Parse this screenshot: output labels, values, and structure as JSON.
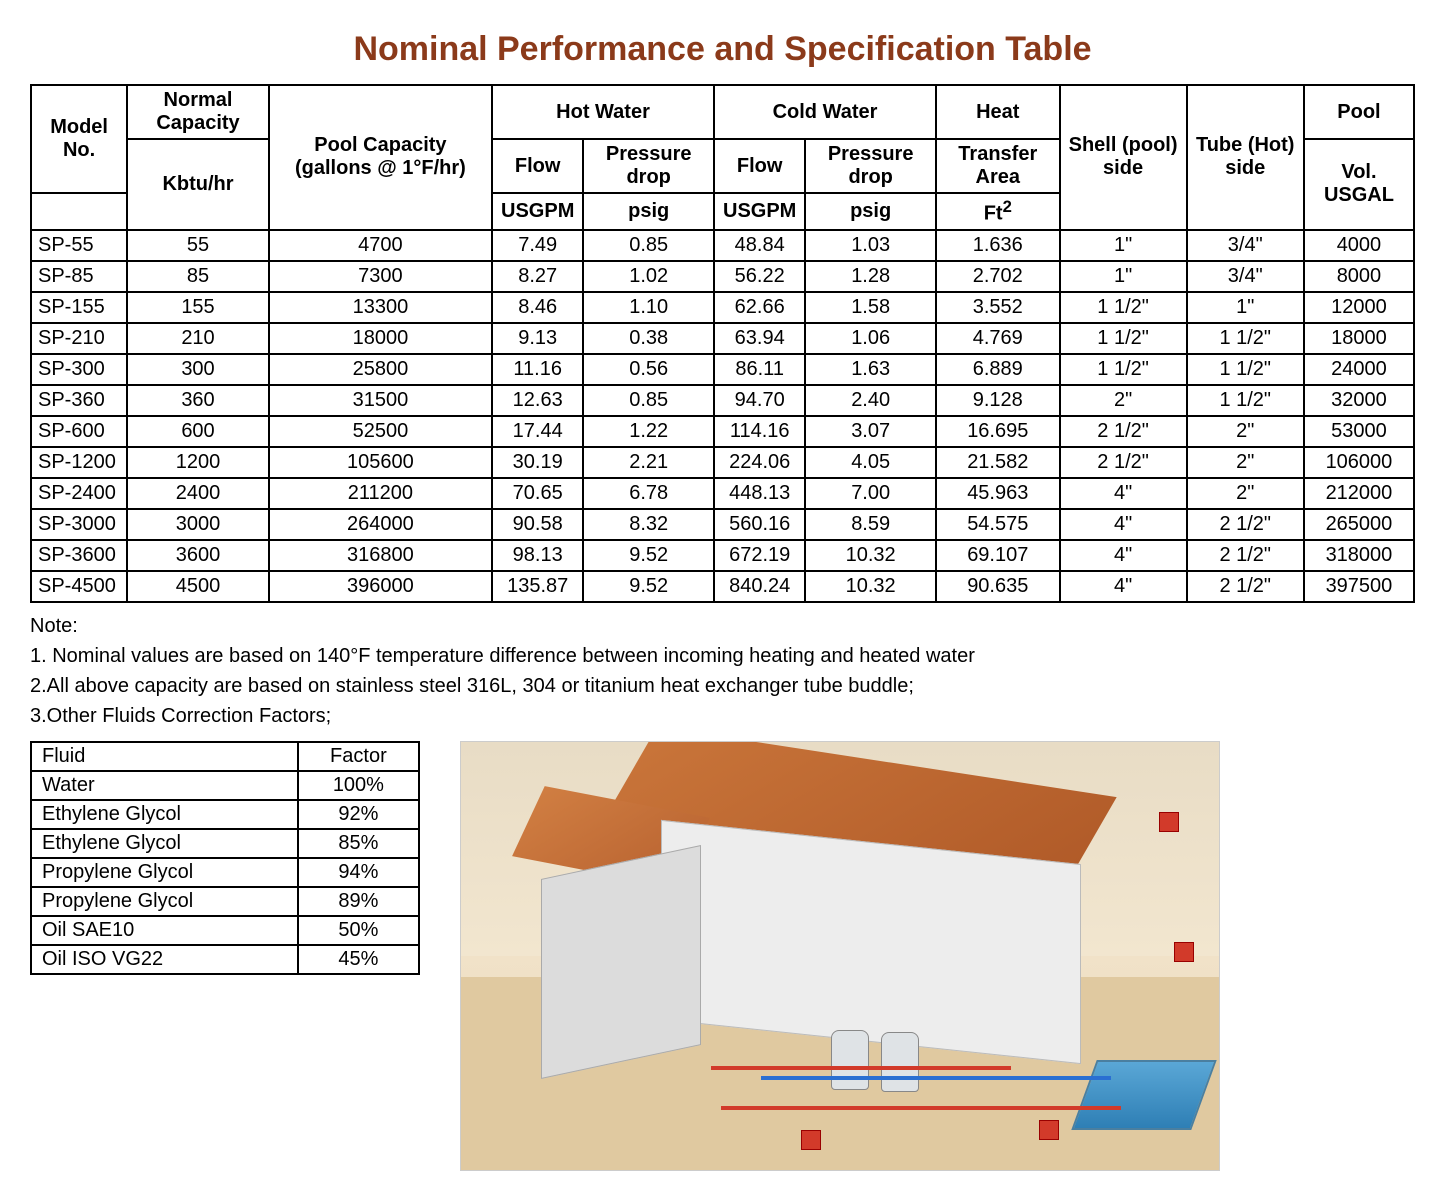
{
  "title": "Nominal Performance and Specification Table",
  "title_color": "#8b3a1a",
  "spec_table": {
    "headers": {
      "model": "Model No.",
      "normal_cap": "Normal Capacity",
      "normal_cap_unit": "Kbtu/hr",
      "pool_cap": "Pool Capacity (gallons @ 1°F/hr)",
      "hot_water": "Hot Water",
      "cold_water": "Cold Water",
      "heat": "Heat",
      "flow": "Flow",
      "pressure_drop": "Pressure drop",
      "transfer_area": "Transfer Area",
      "shell": "Shell (pool) side",
      "tube": "Tube (Hot) side",
      "pool": "Pool",
      "pool_vol": "Vol. USGAL",
      "usgpm": "USGPM",
      "psig": "psig",
      "ft2": "Ft",
      "ft2_sup": "2"
    },
    "rows": [
      {
        "model": "SP-55",
        "cap": "55",
        "poolcap": "4700",
        "hf": "7.49",
        "hp": "0.85",
        "cf": "48.84",
        "cp": "1.03",
        "area": "1.636",
        "shell": "1\"",
        "tube": "3/4\"",
        "vol": "4000"
      },
      {
        "model": "SP-85",
        "cap": "85",
        "poolcap": "7300",
        "hf": "8.27",
        "hp": "1.02",
        "cf": "56.22",
        "cp": "1.28",
        "area": "2.702",
        "shell": "1\"",
        "tube": "3/4\"",
        "vol": "8000"
      },
      {
        "model": "SP-155",
        "cap": "155",
        "poolcap": "13300",
        "hf": "8.46",
        "hp": "1.10",
        "cf": "62.66",
        "cp": "1.58",
        "area": "3.552",
        "shell": "1 1/2\"",
        "tube": "1\"",
        "vol": "12000"
      },
      {
        "model": "SP-210",
        "cap": "210",
        "poolcap": "18000",
        "hf": "9.13",
        "hp": "0.38",
        "cf": "63.94",
        "cp": "1.06",
        "area": "4.769",
        "shell": "1 1/2\"",
        "tube": "1 1/2\"",
        "vol": "18000"
      },
      {
        "model": "SP-300",
        "cap": "300",
        "poolcap": "25800",
        "hf": "11.16",
        "hp": "0.56",
        "cf": "86.11",
        "cp": "1.63",
        "area": "6.889",
        "shell": "1 1/2\"",
        "tube": "1 1/2\"",
        "vol": "24000"
      },
      {
        "model": "SP-360",
        "cap": "360",
        "poolcap": "31500",
        "hf": "12.63",
        "hp": "0.85",
        "cf": "94.70",
        "cp": "2.40",
        "area": "9.128",
        "shell": "2\"",
        "tube": "1 1/2\"",
        "vol": "32000"
      },
      {
        "model": "SP-600",
        "cap": "600",
        "poolcap": "52500",
        "hf": "17.44",
        "hp": "1.22",
        "cf": "114.16",
        "cp": "3.07",
        "area": "16.695",
        "shell": "2 1/2\"",
        "tube": "2\"",
        "vol": "53000"
      },
      {
        "model": "SP-1200",
        "cap": "1200",
        "poolcap": "105600",
        "hf": "30.19",
        "hp": "2.21",
        "cf": "224.06",
        "cp": "4.05",
        "area": "21.582",
        "shell": "2 1/2\"",
        "tube": "2\"",
        "vol": "106000"
      },
      {
        "model": "SP-2400",
        "cap": "2400",
        "poolcap": "211200",
        "hf": "70.65",
        "hp": "6.78",
        "cf": "448.13",
        "cp": "7.00",
        "area": "45.963",
        "shell": "4\"",
        "tube": "2\"",
        "vol": "212000"
      },
      {
        "model": "SP-3000",
        "cap": "3000",
        "poolcap": "264000",
        "hf": "90.58",
        "hp": "8.32",
        "cf": "560.16",
        "cp": "8.59",
        "area": "54.575",
        "shell": "4\"",
        "tube": "2 1/2\"",
        "vol": "265000"
      },
      {
        "model": "SP-3600",
        "cap": "3600",
        "poolcap": "316800",
        "hf": "98.13",
        "hp": "9.52",
        "cf": "672.19",
        "cp": "10.32",
        "area": "69.107",
        "shell": "4\"",
        "tube": "2 1/2\"",
        "vol": "318000"
      },
      {
        "model": "SP-4500",
        "cap": "4500",
        "poolcap": "396000",
        "hf": "135.87",
        "hp": "9.52",
        "cf": "840.24",
        "cp": "10.32",
        "area": "90.635",
        "shell": "4\"",
        "tube": "2 1/2\"",
        "vol": "397500"
      }
    ]
  },
  "notes": {
    "heading": "Note:",
    "n1": "1. Nominal values are based on 140°F temperature difference between incoming heating and heated water",
    "n2": "2.All above capacity are based on stainless steel 316L, 304 or titanium heat exchanger tube buddle;",
    "n3": "3.Other Fluids Correction Factors;"
  },
  "fluid_table": {
    "h_fluid": "Fluid",
    "h_factor": "Factor",
    "rows": [
      {
        "fluid": "Water",
        "factor": "100%"
      },
      {
        "fluid": "Ethylene Glycol",
        "factor": "92%"
      },
      {
        "fluid": "Ethylene Glycol",
        "factor": "85%"
      },
      {
        "fluid": "Propylene Glycol",
        "factor": "94%"
      },
      {
        "fluid": "Propylene Glycol",
        "factor": "89%"
      },
      {
        "fluid": "Oil SAE10",
        "factor": "50%"
      },
      {
        "fluid": "Oil ISO VG22",
        "factor": "45%"
      }
    ]
  },
  "diagram": {
    "roof_color": "#c9753a",
    "wall_color": "#ededed",
    "pool_color": "#3a8fc2",
    "pipe_red": "#d23a2a",
    "pipe_blue": "#2a6fd2",
    "ground_color": "#e0c9a0"
  }
}
